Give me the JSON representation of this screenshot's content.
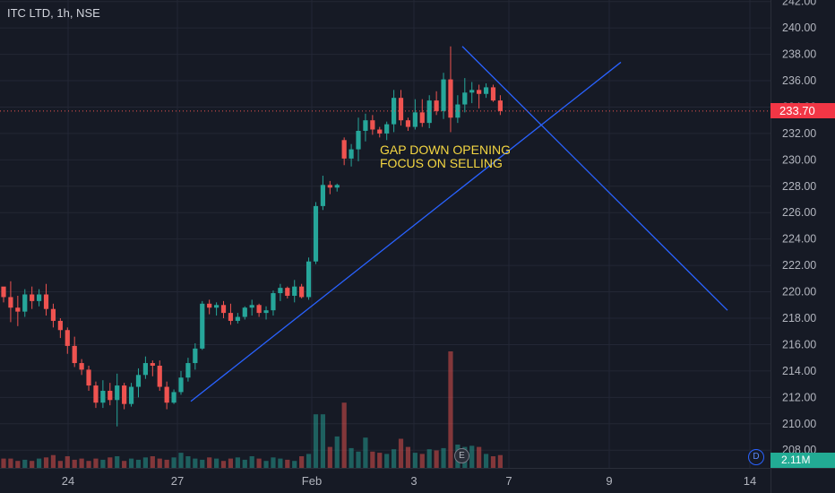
{
  "header": {
    "symbol_title": "ITC LTD, 1h, NSE"
  },
  "annotation": {
    "line1": "GAP DOWN  OPENING",
    "line2": "FOCUS ON SELLING"
  },
  "price_tag": "233.70",
  "volume_tag": "2.11M",
  "earnings_badge": "E",
  "dividend_badge": "D",
  "colors": {
    "up": "#26a69a",
    "down": "#ef5350",
    "trendline": "#2962ff",
    "annotation": "#f5d742",
    "background": "#161a25"
  },
  "chart_data": {
    "type": "candlestick",
    "x_tick_labels": [
      "24",
      "27",
      "Feb",
      "3",
      "7",
      "9",
      "14"
    ],
    "y_tick_labels": [
      "208.00",
      "210.00",
      "212.00",
      "214.00",
      "216.00",
      "218.00",
      "220.00",
      "222.00",
      "224.00",
      "226.00",
      "228.00",
      "230.00",
      "232.00",
      "234.00",
      "236.00",
      "238.00",
      "240.00",
      "242.00"
    ],
    "ylim": [
      206.5,
      242.5
    ],
    "last_price": 233.7,
    "candles": [
      [
        220.4,
        220.2,
        219.2,
        219.6
      ],
      [
        219.6,
        220.8,
        217.7,
        218.8
      ],
      [
        218.8,
        219.7,
        217.4,
        218.5
      ],
      [
        218.5,
        220.2,
        218.1,
        219.8
      ],
      [
        219.8,
        220.4,
        218.7,
        219.3
      ],
      [
        219.3,
        220.2,
        218.9,
        219.8
      ],
      [
        219.8,
        220.6,
        218.2,
        218.7
      ],
      [
        218.7,
        219.1,
        217.3,
        217.8
      ],
      [
        217.8,
        218.0,
        216.5,
        217.1
      ],
      [
        217.1,
        217.3,
        215.3,
        215.9
      ],
      [
        215.9,
        216.6,
        214.3,
        214.6
      ],
      [
        214.6,
        214.9,
        213.7,
        214.1
      ],
      [
        214.1,
        214.4,
        212.5,
        212.9
      ],
      [
        212.9,
        213.2,
        211.2,
        211.6
      ],
      [
        211.6,
        213.3,
        211.2,
        212.5
      ],
      [
        212.5,
        213.1,
        211.4,
        211.8
      ],
      [
        211.8,
        213.8,
        209.8,
        212.9
      ],
      [
        212.9,
        213.1,
        211.1,
        211.5
      ],
      [
        211.5,
        213.1,
        211.3,
        212.8
      ],
      [
        212.8,
        214.2,
        212.0,
        213.7
      ],
      [
        213.7,
        215.1,
        213.4,
        214.6
      ],
      [
        214.6,
        214.8,
        213.6,
        214.4
      ],
      [
        214.4,
        214.8,
        212.5,
        212.8
      ],
      [
        212.8,
        213.2,
        211.1,
        211.6
      ],
      [
        211.6,
        212.6,
        211.5,
        212.4
      ],
      [
        212.4,
        214.0,
        212.2,
        213.5
      ],
      [
        213.5,
        215.0,
        213.2,
        214.6
      ],
      [
        214.6,
        216.1,
        214.1,
        215.7
      ],
      [
        215.7,
        219.3,
        215.6,
        219.1
      ],
      [
        219.1,
        219.4,
        218.3,
        218.8
      ],
      [
        218.8,
        219.2,
        218.2,
        219.0
      ],
      [
        219.0,
        219.3,
        218.0,
        218.4
      ],
      [
        218.4,
        219.1,
        217.5,
        217.8
      ],
      [
        217.8,
        218.4,
        217.6,
        218.1
      ],
      [
        218.1,
        218.9,
        217.9,
        218.8
      ],
      [
        218.8,
        219.4,
        218.2,
        219.0
      ],
      [
        219.0,
        219.1,
        218.1,
        218.4
      ],
      [
        218.4,
        218.9,
        217.9,
        218.6
      ],
      [
        218.6,
        220.1,
        218.2,
        219.9
      ],
      [
        219.9,
        220.6,
        219.3,
        220.3
      ],
      [
        220.3,
        220.4,
        219.5,
        219.7
      ],
      [
        219.7,
        220.9,
        219.2,
        220.4
      ],
      [
        220.4,
        220.6,
        219.5,
        219.6
      ],
      [
        219.6,
        222.6,
        219.4,
        222.3
      ],
      [
        222.3,
        226.8,
        222.1,
        226.5
      ],
      [
        226.5,
        228.8,
        226.2,
        228.1
      ],
      [
        228.1,
        228.4,
        227.4,
        227.9
      ],
      [
        227.9,
        228.2,
        227.6,
        228.1
      ],
      [
        231.5,
        231.7,
        229.6,
        230.1
      ],
      [
        230.1,
        231.2,
        229.5,
        230.8
      ],
      [
        230.8,
        233.2,
        229.9,
        232.2
      ],
      [
        232.2,
        233.5,
        231.4,
        233.0
      ],
      [
        233.0,
        233.4,
        231.9,
        232.3
      ],
      [
        232.3,
        232.5,
        231.7,
        232.0
      ],
      [
        232.0,
        232.9,
        231.5,
        232.7
      ],
      [
        232.7,
        235.3,
        232.1,
        234.7
      ],
      [
        234.7,
        235.3,
        232.6,
        233.0
      ],
      [
        233.0,
        233.2,
        232.2,
        232.5
      ],
      [
        232.5,
        234.6,
        232.3,
        233.6
      ],
      [
        233.6,
        234.6,
        232.5,
        232.8
      ],
      [
        232.8,
        234.9,
        232.4,
        234.5
      ],
      [
        234.5,
        235.2,
        233.4,
        233.7
      ],
      [
        233.7,
        236.6,
        233.1,
        236.1
      ],
      [
        236.1,
        238.6,
        232.1,
        233.2
      ],
      [
        233.2,
        234.9,
        232.8,
        234.2
      ],
      [
        234.2,
        236.2,
        233.6,
        235.1
      ],
      [
        235.1,
        235.9,
        234.3,
        235.3
      ],
      [
        235.3,
        235.7,
        233.9,
        235.0
      ],
      [
        235.0,
        235.8,
        234.7,
        235.5
      ],
      [
        235.5,
        235.7,
        234.4,
        234.5
      ],
      [
        234.5,
        234.9,
        233.4,
        233.7
      ]
    ],
    "volume_levels": [
      0.08,
      0.08,
      0.06,
      0.07,
      0.06,
      0.08,
      0.09,
      0.11,
      0.06,
      0.1,
      0.07,
      0.08,
      0.06,
      0.08,
      0.07,
      0.09,
      0.1,
      0.06,
      0.08,
      0.07,
      0.09,
      0.1,
      0.08,
      0.07,
      0.09,
      0.13,
      0.1,
      0.08,
      0.07,
      0.09,
      0.08,
      0.06,
      0.08,
      0.09,
      0.07,
      0.1,
      0.08,
      0.06,
      0.09,
      0.08,
      0.07,
      0.06,
      0.1,
      0.12,
      0.46,
      0.46,
      0.18,
      0.27,
      0.56,
      0.17,
      0.14,
      0.26,
      0.14,
      0.13,
      0.12,
      0.16,
      0.25,
      0.18,
      0.13,
      0.12,
      0.16,
      0.15,
      0.17,
      1.0,
      0.2,
      0.18,
      0.19,
      0.18,
      0.12,
      0.1,
      0.11
    ]
  }
}
